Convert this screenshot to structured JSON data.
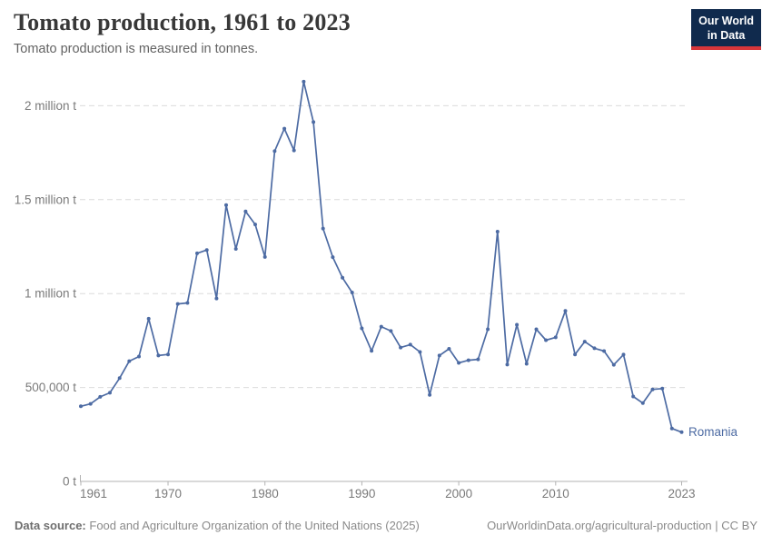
{
  "header": {
    "title": "Tomato production, 1961 to 2023",
    "subtitle": "Tomato production is measured in tonnes.",
    "logo_line1": "Our World",
    "logo_line2": "in Data"
  },
  "chart_data": {
    "type": "line",
    "title": "Tomato production, 1961 to 2023",
    "unit": "tonnes",
    "xlabel": "",
    "ylabel": "",
    "xlim": [
      1961,
      2023
    ],
    "ylim": [
      0,
      2200000
    ],
    "grid": "horizontal-dashed",
    "legend_position": "end-of-line-label",
    "x_ticks": [
      1961,
      1970,
      1980,
      1990,
      2000,
      2010,
      2023
    ],
    "y_ticks": [
      {
        "value": 0,
        "label": "0 t"
      },
      {
        "value": 500000,
        "label": "500,000 t"
      },
      {
        "value": 1000000,
        "label": "1 million t"
      },
      {
        "value": 1500000,
        "label": "1.5 million t"
      },
      {
        "value": 2000000,
        "label": "2 million t"
      }
    ],
    "series": [
      {
        "name": "Romania",
        "x": [
          1961,
          1962,
          1963,
          1964,
          1965,
          1966,
          1967,
          1968,
          1969,
          1970,
          1971,
          1972,
          1973,
          1974,
          1975,
          1976,
          1977,
          1978,
          1979,
          1980,
          1981,
          1982,
          1983,
          1984,
          1985,
          1986,
          1987,
          1988,
          1989,
          1990,
          1991,
          1992,
          1993,
          1994,
          1995,
          1996,
          1997,
          1998,
          1999,
          2000,
          2001,
          2002,
          2003,
          2004,
          2005,
          2006,
          2007,
          2008,
          2009,
          2010,
          2011,
          2012,
          2013,
          2014,
          2015,
          2016,
          2017,
          2018,
          2019,
          2020,
          2021,
          2022,
          2023
        ],
        "values": [
          400000,
          413000,
          450000,
          472000,
          550000,
          640000,
          665000,
          866000,
          670000,
          676000,
          945000,
          950000,
          1214000,
          1232000,
          974000,
          1471000,
          1238000,
          1437000,
          1368000,
          1195000,
          1758000,
          1878000,
          1762000,
          2128000,
          1913000,
          1346000,
          1194000,
          1084000,
          1006000,
          815000,
          695000,
          824000,
          801000,
          713000,
          728000,
          689000,
          461000,
          670000,
          706000,
          631000,
          645000,
          650000,
          810000,
          1330000,
          622000,
          834000,
          626000,
          810000,
          752000,
          767000,
          908000,
          676000,
          744000,
          709000,
          694000,
          621000,
          675000,
          452000,
          417000,
          490000,
          494000,
          282000,
          262000
        ]
      }
    ]
  },
  "footer": {
    "source_label": "Data source:",
    "source_text": "Food and Agriculture Organization of the United Nations (2025)",
    "credit": "OurWorldinData.org/agricultural-production | CC BY"
  },
  "colors": {
    "line": "#4d6ba3",
    "logo_bg": "#102a4d",
    "logo_accent": "#d7363a",
    "grid": "#dcdcdc",
    "axis": "#b3b3b3",
    "tick_label": "#7a7a7a",
    "title": "#383838",
    "subtitle": "#636363",
    "footer": "#8a8a8a"
  }
}
